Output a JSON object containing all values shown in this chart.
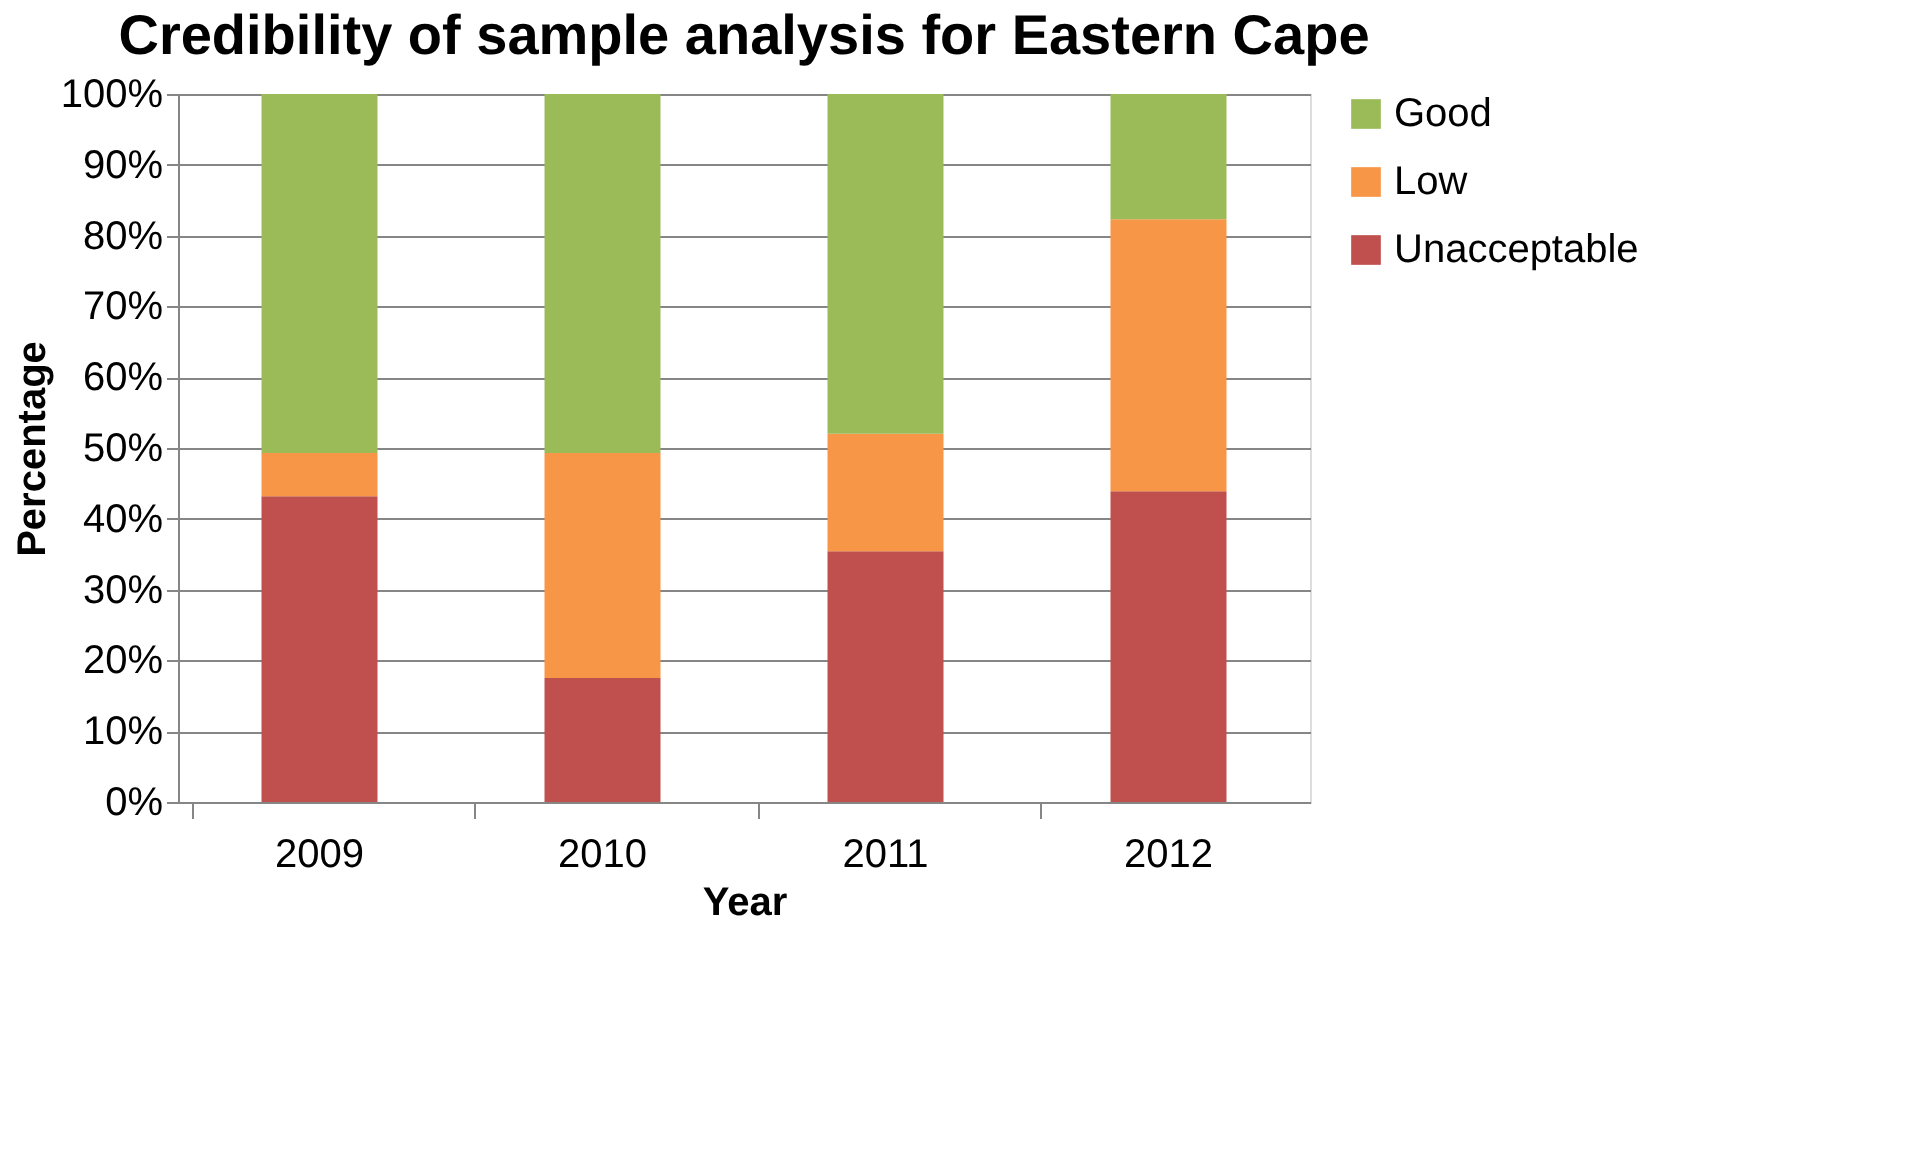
{
  "chart_data": {
    "type": "bar",
    "stacked": true,
    "title": "Credibility of sample analysis for Eastern Cape",
    "xlabel": "Year",
    "ylabel": "Percentage",
    "categories": [
      "2009",
      "2010",
      "2011",
      "2012"
    ],
    "series": [
      {
        "name": "Unacceptable",
        "color": "#c0504d",
        "values": [
          43.2,
          17.5,
          35.4,
          43.9
        ]
      },
      {
        "name": "Low",
        "color": "#f79646",
        "values": [
          6.1,
          31.8,
          16.6,
          38.4
        ]
      },
      {
        "name": "Good",
        "color": "#9bbb59",
        "values": [
          50.7,
          50.7,
          48.0,
          17.7
        ]
      }
    ],
    "ylim": [
      0,
      100
    ],
    "yticks": [
      {
        "value": 0,
        "label": "0%"
      },
      {
        "value": 10,
        "label": "10%"
      },
      {
        "value": 20,
        "label": "20%"
      },
      {
        "value": 30,
        "label": "30%"
      },
      {
        "value": 40,
        "label": "40%"
      },
      {
        "value": 50,
        "label": "50%"
      },
      {
        "value": 60,
        "label": "60%"
      },
      {
        "value": 70,
        "label": "70%"
      },
      {
        "value": 80,
        "label": "80%"
      },
      {
        "value": 90,
        "label": "90%"
      },
      {
        "value": 100,
        "label": "100%"
      }
    ],
    "grid": "y",
    "legend": "right"
  }
}
